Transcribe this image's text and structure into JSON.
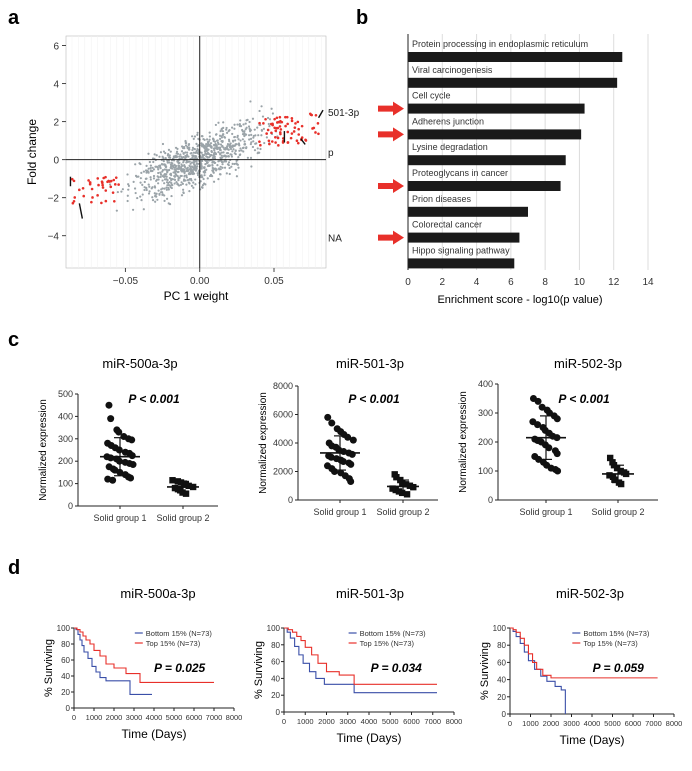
{
  "panels": {
    "a": "a",
    "b": "b",
    "c": "c",
    "d": "d"
  },
  "colors": {
    "red": "#e8302a",
    "blue": "#3a4fa8",
    "grey": "#9aa3a8",
    "black": "#1a1a1a"
  },
  "chart_data": [
    {
      "id": "a",
      "type": "scatter",
      "xlabel": "PC 1 weight",
      "ylabel": "Fold change",
      "xlim": [
        -0.09,
        0.085
      ],
      "ylim": [
        -5.7,
        6.5
      ],
      "xticks": [
        "−0.05",
        "0.00",
        "0.05"
      ],
      "xtick_values": [
        -0.05,
        0.0,
        0.05
      ],
      "yticks": [
        "6",
        "4",
        "2",
        "0",
        "−2",
        "−4"
      ],
      "ytick_values": [
        6,
        4,
        2,
        0,
        -2,
        -4
      ],
      "annotations": [
        {
          "text": "501-3p",
          "x": 0.085,
          "y": 2.5
        },
        {
          "text": "p",
          "x": 0.085,
          "y": 0.4
        },
        {
          "text": "NA",
          "x": 0.085,
          "y": -4.1
        }
      ],
      "series": [
        {
          "color": "grey",
          "points": "dense cloud of several hundred non-significant miRNAs along the diagonal"
        },
        {
          "color": "red",
          "points": "highlighted miRNAs in the upper-right (x 0.04–0.08, y 0.5–2.2) and lower-left (x −0.09 to −0.05, y −2.4 to −0.8)"
        }
      ]
    },
    {
      "id": "b",
      "type": "bar",
      "orientation": "horizontal",
      "xlabel": "Enrichment score - log10(p value)",
      "xlim": [
        0,
        14
      ],
      "xticks": [
        "0",
        "2",
        "4",
        "6",
        "8",
        "10",
        "12",
        "14"
      ],
      "categories": [
        "Protein processing in endoplasmic reticulum",
        "Viral carcinogenesis",
        "Cell cycle",
        "Adherens junction",
        "Lysine degradation",
        "Proteoglycans in cancer",
        "Prion diseases",
        "Colorectal cancer",
        "Hippo signaling pathway"
      ],
      "values": [
        12.5,
        12.2,
        10.3,
        10.1,
        9.2,
        8.9,
        7.0,
        6.5,
        6.2
      ],
      "arrow_marked": [
        false,
        false,
        true,
        true,
        false,
        true,
        false,
        true,
        false
      ]
    },
    {
      "id": "c1",
      "type": "scatter",
      "title": "miR-500a-3p",
      "ylabel": "Normalized expression",
      "annotation": "P < 0.001",
      "categories": [
        "Solid group 1",
        "Solid group 2"
      ],
      "ylim": [
        0,
        500
      ],
      "yticks": [
        "0",
        "100",
        "200",
        "300",
        "400",
        "500"
      ],
      "groups": [
        {
          "name": "Solid group 1",
          "marker": "circle",
          "mean": 220,
          "sd": 85,
          "values": [
            450,
            390,
            340,
            330,
            310,
            300,
            295,
            280,
            270,
            260,
            250,
            240,
            235,
            225,
            220,
            215,
            210,
            200,
            195,
            190,
            185,
            175,
            165,
            160,
            150,
            140,
            130,
            125,
            120,
            115
          ]
        },
        {
          "name": "Solid group 2",
          "marker": "square",
          "mean": 85,
          "sd": 25,
          "values": [
            115,
            110,
            105,
            100,
            95,
            90,
            85,
            80,
            75,
            70,
            60,
            55
          ]
        }
      ]
    },
    {
      "id": "c2",
      "type": "scatter",
      "title": "miR-501-3p",
      "ylabel": "Normalized expression",
      "annotation": "P < 0.001",
      "categories": [
        "Solid group 1",
        "Solid group 2"
      ],
      "ylim": [
        0,
        8000
      ],
      "yticks": [
        "0",
        "2000",
        "4000",
        "6000",
        "8000"
      ],
      "groups": [
        {
          "name": "Solid group 1",
          "marker": "circle",
          "mean": 3300,
          "sd": 1200,
          "values": [
            5800,
            5400,
            5000,
            4800,
            4600,
            4400,
            4200,
            4000,
            3800,
            3700,
            3500,
            3400,
            3300,
            3200,
            3100,
            3000,
            2900,
            2800,
            2700,
            2600,
            2500,
            2400,
            2200,
            2000,
            1900,
            1700,
            1500,
            1300
          ]
        },
        {
          "name": "Solid group 2",
          "marker": "square",
          "mean": 950,
          "sd": 450,
          "values": [
            1800,
            1600,
            1400,
            1200,
            1100,
            1000,
            900,
            800,
            700,
            600,
            500,
            400
          ]
        }
      ]
    },
    {
      "id": "c3",
      "type": "scatter",
      "title": "miR-502-3p",
      "ylabel": "Normalized expression",
      "annotation": "P < 0.001",
      "categories": [
        "Solid group 1",
        "Solid group 2"
      ],
      "ylim": [
        0,
        400
      ],
      "yticks": [
        "0",
        "100",
        "200",
        "300",
        "400"
      ],
      "groups": [
        {
          "name": "Solid group 1",
          "marker": "circle",
          "mean": 215,
          "sd": 75,
          "values": [
            350,
            340,
            320,
            310,
            300,
            290,
            280,
            270,
            260,
            250,
            240,
            230,
            220,
            215,
            210,
            205,
            200,
            190,
            180,
            170,
            160,
            150,
            140,
            130,
            120,
            110,
            105,
            100
          ]
        },
        {
          "name": "Solid group 2",
          "marker": "square",
          "mean": 90,
          "sd": 30,
          "values": [
            145,
            130,
            120,
            110,
            100,
            95,
            90,
            85,
            80,
            70,
            60,
            55
          ]
        }
      ]
    },
    {
      "id": "d1",
      "type": "line",
      "subtype": "kaplan-meier",
      "title": "miR-500a-3p",
      "xlabel": "Time (Days)",
      "ylabel": "% Surviving",
      "annotation": "P = 0.025",
      "xlim": [
        0,
        8000
      ],
      "ylim": [
        0,
        100
      ],
      "xticks": [
        "0",
        "1000",
        "2000",
        "3000",
        "4000",
        "5000",
        "6000",
        "7000",
        "8000"
      ],
      "yticks": [
        "0",
        "20",
        "40",
        "60",
        "80",
        "100"
      ],
      "series": [
        {
          "name": "Bottom 15% (N=73)",
          "color": "blue",
          "x": [
            0,
            100,
            200,
            300,
            400,
            500,
            700,
            900,
            1100,
            1300,
            1600,
            2700,
            2800,
            3900
          ],
          "y": [
            100,
            98,
            92,
            85,
            78,
            70,
            62,
            52,
            45,
            38,
            34,
            34,
            17,
            17
          ]
        },
        {
          "name": "Top 15% (N=73)",
          "color": "red",
          "x": [
            0,
            150,
            300,
            450,
            600,
            800,
            1000,
            1300,
            1600,
            2000,
            2600,
            3300,
            7000
          ],
          "y": [
            100,
            98,
            95,
            90,
            85,
            80,
            72,
            65,
            55,
            50,
            43,
            32,
            32
          ]
        }
      ]
    },
    {
      "id": "d2",
      "type": "line",
      "subtype": "kaplan-meier",
      "title": "miR-501-3p",
      "xlabel": "Time (Days)",
      "ylabel": "% Surviving",
      "annotation": "P = 0.034",
      "xlim": [
        0,
        8000
      ],
      "ylim": [
        0,
        100
      ],
      "xticks": [
        "0",
        "1000",
        "2000",
        "3000",
        "4000",
        "5000",
        "6000",
        "7000",
        "8000"
      ],
      "yticks": [
        "0",
        "20",
        "40",
        "60",
        "80",
        "100"
      ],
      "series": [
        {
          "name": "Bottom 15% (N=73)",
          "color": "blue",
          "x": [
            0,
            150,
            300,
            500,
            700,
            900,
            1200,
            1500,
            1900,
            2600,
            3300,
            7200
          ],
          "y": [
            100,
            95,
            88,
            78,
            68,
            58,
            48,
            40,
            33,
            33,
            23,
            23
          ]
        },
        {
          "name": "Top 15% (N=73)",
          "color": "red",
          "x": [
            0,
            200,
            400,
            600,
            800,
            1000,
            1300,
            1600,
            2000,
            2600,
            3300,
            7200
          ],
          "y": [
            100,
            98,
            95,
            90,
            85,
            77,
            68,
            58,
            48,
            44,
            33,
            33
          ]
        }
      ]
    },
    {
      "id": "d3",
      "type": "line",
      "subtype": "kaplan-meier",
      "title": "miR-502-3p",
      "xlabel": "Time (Days)",
      "ylabel": "% Surviving",
      "annotation": "P = 0.059",
      "xlim": [
        0,
        8000
      ],
      "ylim": [
        0,
        100
      ],
      "xticks": [
        "0",
        "1000",
        "2000",
        "3000",
        "4000",
        "5000",
        "6000",
        "7000",
        "8000"
      ],
      "yticks": [
        "0",
        "20",
        "40",
        "60",
        "80",
        "100"
      ],
      "series": [
        {
          "name": "Bottom 15% (N=73)",
          "color": "blue",
          "x": [
            0,
            150,
            300,
            500,
            700,
            900,
            1200,
            1500,
            1800,
            2200,
            2500,
            2700,
            2700
          ],
          "y": [
            100,
            96,
            90,
            82,
            72,
            62,
            52,
            44,
            38,
            32,
            28,
            25,
            0
          ]
        },
        {
          "name": "Top 15% (N=73)",
          "color": "red",
          "x": [
            0,
            150,
            300,
            500,
            700,
            900,
            1100,
            1300,
            1600,
            2000,
            2500,
            7200
          ],
          "y": [
            100,
            98,
            95,
            88,
            80,
            70,
            60,
            52,
            45,
            42,
            42,
            42
          ]
        }
      ]
    }
  ]
}
